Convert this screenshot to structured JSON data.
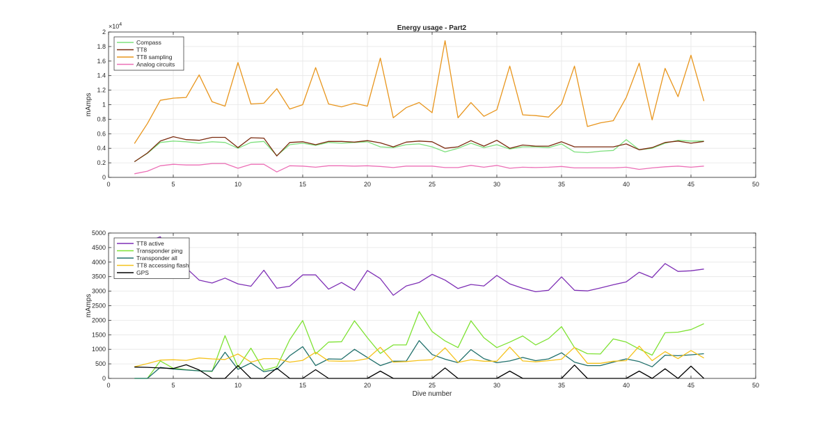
{
  "figure": {
    "title": "Energy usage - Part2"
  },
  "chart_data": [
    {
      "type": "line",
      "title": "Energy usage - Part2",
      "xlabel": "",
      "ylabel": "mAmps",
      "xlim": [
        0,
        50
      ],
      "ylim": [
        0,
        20000
      ],
      "xticks": [
        0,
        5,
        10,
        15,
        20,
        25,
        30,
        35,
        40,
        45,
        50
      ],
      "yticks": [
        0,
        2000,
        4000,
        6000,
        8000,
        10000,
        12000,
        14000,
        16000,
        18000,
        20000
      ],
      "ytick_labels": [
        "0",
        "0.2",
        "0.4",
        "0.6",
        "0.8",
        "1",
        "1.2",
        "1.4",
        "1.6",
        "1.8",
        "2"
      ],
      "y_exponent_label": "×10",
      "y_exponent_power": "4",
      "grid": true,
      "legend_position": "top-left",
      "x": [
        2,
        3,
        4,
        5,
        6,
        7,
        8,
        9,
        10,
        11,
        12,
        13,
        14,
        15,
        16,
        17,
        18,
        19,
        20,
        21,
        22,
        23,
        24,
        25,
        26,
        27,
        28,
        29,
        30,
        31,
        32,
        33,
        34,
        35,
        36,
        37,
        38,
        39,
        40,
        41,
        42,
        43,
        44,
        45,
        46
      ],
      "series": [
        {
          "name": "Compass",
          "color": "#7ee07e",
          "values": [
            2150,
            3300,
            4800,
            5000,
            4900,
            4700,
            4900,
            4800,
            4000,
            4800,
            4950,
            3000,
            4500,
            4700,
            4400,
            4800,
            4700,
            4800,
            4900,
            4200,
            4100,
            4500,
            4600,
            4200,
            3500,
            4000,
            4700,
            4100,
            4500,
            3900,
            4200,
            4200,
            4100,
            4600,
            3500,
            3400,
            3600,
            3700,
            5200,
            3800,
            4000,
            4700,
            5100,
            5000,
            5000
          ]
        },
        {
          "name": "TT8",
          "color": "#7a2a0e",
          "values": [
            2150,
            3350,
            5000,
            5600,
            5200,
            5100,
            5500,
            5500,
            4100,
            5450,
            5400,
            2950,
            4800,
            4900,
            4500,
            4950,
            4950,
            4850,
            5050,
            4750,
            4200,
            4850,
            5000,
            4900,
            4000,
            4200,
            5050,
            4300,
            5100,
            4000,
            4450,
            4300,
            4300,
            4900,
            4200,
            4200,
            4200,
            4200,
            4600,
            3800,
            4100,
            4800,
            5000,
            4700,
            4950
          ]
        },
        {
          "name": "TT8 sampling",
          "color": "#e8951c",
          "values": [
            4650,
            7400,
            10600,
            10900,
            11000,
            14100,
            10400,
            9800,
            15800,
            10100,
            10200,
            12200,
            9400,
            10000,
            15100,
            10100,
            9700,
            10200,
            9800,
            16400,
            8200,
            9600,
            10300,
            8900,
            18800,
            8200,
            10300,
            8400,
            9300,
            15300,
            8600,
            8500,
            8300,
            10100,
            15300,
            7000,
            7500,
            7800,
            11000,
            15700,
            7900,
            15000,
            11100,
            16800,
            10500
          ]
        },
        {
          "name": "Analog circuits",
          "color": "#ec6fb6",
          "values": [
            500,
            850,
            1600,
            1800,
            1700,
            1700,
            1900,
            1900,
            1250,
            1800,
            1800,
            750,
            1600,
            1550,
            1400,
            1600,
            1600,
            1550,
            1600,
            1500,
            1350,
            1550,
            1550,
            1550,
            1350,
            1350,
            1650,
            1400,
            1650,
            1250,
            1400,
            1350,
            1400,
            1500,
            1300,
            1300,
            1300,
            1300,
            1400,
            1100,
            1300,
            1450,
            1550,
            1400,
            1550
          ]
        }
      ]
    },
    {
      "type": "line",
      "title": "",
      "xlabel": "Dive number",
      "ylabel": "mAmps",
      "xlim": [
        0,
        50
      ],
      "ylim": [
        0,
        5000
      ],
      "xticks": [
        0,
        5,
        10,
        15,
        20,
        25,
        30,
        35,
        40,
        45,
        50
      ],
      "yticks": [
        0,
        500,
        1000,
        1500,
        2000,
        2500,
        3000,
        3500,
        4000,
        4500,
        5000
      ],
      "ytick_labels": [
        "0",
        "500",
        "1000",
        "1500",
        "2000",
        "2500",
        "3000",
        "3500",
        "4000",
        "4500",
        "5000"
      ],
      "grid": true,
      "legend_position": "top-left",
      "x": [
        2,
        3,
        4,
        5,
        6,
        7,
        8,
        9,
        10,
        11,
        12,
        13,
        14,
        15,
        16,
        17,
        18,
        19,
        20,
        21,
        22,
        23,
        24,
        25,
        26,
        27,
        28,
        29,
        30,
        31,
        32,
        33,
        34,
        35,
        36,
        37,
        38,
        39,
        40,
        41,
        42,
        43,
        44,
        45,
        46
      ],
      "series": [
        {
          "name": "TT8 active",
          "color": "#7e2fb5",
          "values": [
            4820,
            4700,
            4870,
            4100,
            3800,
            3380,
            3280,
            3450,
            3250,
            3170,
            3720,
            3100,
            3170,
            3560,
            3560,
            3070,
            3300,
            3030,
            3710,
            3430,
            2860,
            3180,
            3300,
            3580,
            3380,
            3090,
            3230,
            3180,
            3540,
            3250,
            3100,
            2980,
            3030,
            3490,
            3030,
            3010,
            3110,
            3220,
            3320,
            3650,
            3470,
            3950,
            3680,
            3700,
            3760
          ]
        },
        {
          "name": "Transponder ping",
          "color": "#7ee233",
          "values": [
            0,
            0,
            600,
            350,
            300,
            260,
            240,
            1470,
            380,
            1040,
            280,
            400,
            1330,
            1990,
            840,
            1250,
            1260,
            1980,
            1400,
            860,
            1150,
            1150,
            2300,
            1610,
            1290,
            1060,
            1980,
            1400,
            1060,
            1250,
            1460,
            1150,
            1370,
            1780,
            1060,
            850,
            840,
            1360,
            1250,
            1010,
            800,
            1570,
            1590,
            1680,
            1880
          ]
        },
        {
          "name": "Transponder all",
          "color": "#1f6f6a",
          "values": [
            0,
            0,
            380,
            320,
            290,
            260,
            250,
            900,
            310,
            530,
            230,
            310,
            780,
            1090,
            440,
            670,
            660,
            1000,
            720,
            440,
            590,
            590,
            1300,
            820,
            660,
            540,
            990,
            680,
            540,
            600,
            720,
            610,
            670,
            880,
            560,
            440,
            440,
            560,
            670,
            580,
            400,
            800,
            780,
            810,
            850
          ]
        },
        {
          "name": "TT8 accessing flash",
          "color": "#f5c21b",
          "values": [
            400,
            510,
            630,
            640,
            620,
            700,
            670,
            650,
            840,
            560,
            680,
            680,
            560,
            620,
            900,
            600,
            590,
            600,
            680,
            1070,
            560,
            580,
            620,
            640,
            1050,
            550,
            640,
            590,
            590,
            1080,
            600,
            570,
            610,
            660,
            1070,
            520,
            520,
            590,
            610,
            1110,
            610,
            920,
            680,
            960,
            700
          ]
        },
        {
          "name": "GPS",
          "color": "#000000",
          "values": [
            390,
            380,
            360,
            340,
            470,
            290,
            0,
            0,
            440,
            0,
            0,
            350,
            0,
            0,
            300,
            0,
            0,
            0,
            0,
            250,
            0,
            0,
            0,
            0,
            360,
            0,
            0,
            0,
            0,
            250,
            0,
            0,
            0,
            0,
            460,
            0,
            0,
            0,
            0,
            250,
            0,
            330,
            0,
            420,
            0
          ]
        }
      ]
    }
  ]
}
